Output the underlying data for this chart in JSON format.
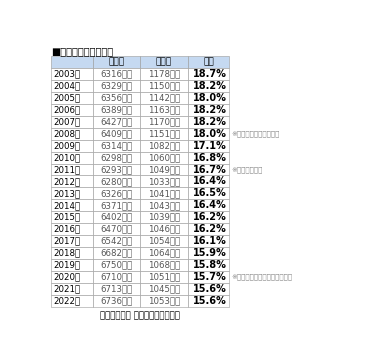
{
  "title": "■製造業就業者数推移",
  "headers": [
    "",
    "全産業",
    "製造業",
    "割合"
  ],
  "rows": [
    [
      "2003年",
      "6316万人",
      "1178万人",
      "18.7%"
    ],
    [
      "2004年",
      "6329万人",
      "1150万人",
      "18.2%"
    ],
    [
      "2005年",
      "6356万人",
      "1142万人",
      "18.0%"
    ],
    [
      "2006年",
      "6389万人",
      "1163万人",
      "18.2%"
    ],
    [
      "2007年",
      "6427万人",
      "1170万人",
      "18.2%"
    ],
    [
      "2008年",
      "6409万人",
      "1151万人",
      "18.0%"
    ],
    [
      "2009年",
      "6314万人",
      "1082万人",
      "17.1%"
    ],
    [
      "2010年",
      "6298万人",
      "1060万人",
      "16.8%"
    ],
    [
      "2011年",
      "6293万人",
      "1049万人",
      "16.7%"
    ],
    [
      "2012年",
      "6280万人",
      "1033万人",
      "16.4%"
    ],
    [
      "2013年",
      "6326万人",
      "1041万人",
      "16.5%"
    ],
    [
      "2014年",
      "6371万人",
      "1043万人",
      "16.4%"
    ],
    [
      "2015年",
      "6402万人",
      "1039万人",
      "16.2%"
    ],
    [
      "2016年",
      "6470万人",
      "1046万人",
      "16.2%"
    ],
    [
      "2017年",
      "6542万人",
      "1054万人",
      "16.1%"
    ],
    [
      "2018年",
      "6682万人",
      "1064万人",
      "15.9%"
    ],
    [
      "2019年",
      "6750万人",
      "1068万人",
      "15.8%"
    ],
    [
      "2020年",
      "6710万人",
      "1051万人",
      "15.7%"
    ],
    [
      "2021年",
      "6713万人",
      "1045万人",
      "15.6%"
    ],
    [
      "2022年",
      "6736万人",
      "1053万人",
      "15.6%"
    ]
  ],
  "annotations": [
    {
      "row": 5,
      "text": "※リーマンショック発生"
    },
    {
      "row": 8,
      "text": "※東日本大震災"
    },
    {
      "row": 17,
      "text": "※新型コロナウイルス感染拡大"
    }
  ],
  "footer": "総務省統計局 労働力調査より作成",
  "header_bg": "#c5d9f1",
  "border_color": "#999999",
  "header_text_color": "#000000",
  "cell_text_color": "#555555",
  "ratio_text_color": "#000000",
  "title_color": "#000000",
  "annotation_color": "#888888",
  "footer_color": "#000000"
}
